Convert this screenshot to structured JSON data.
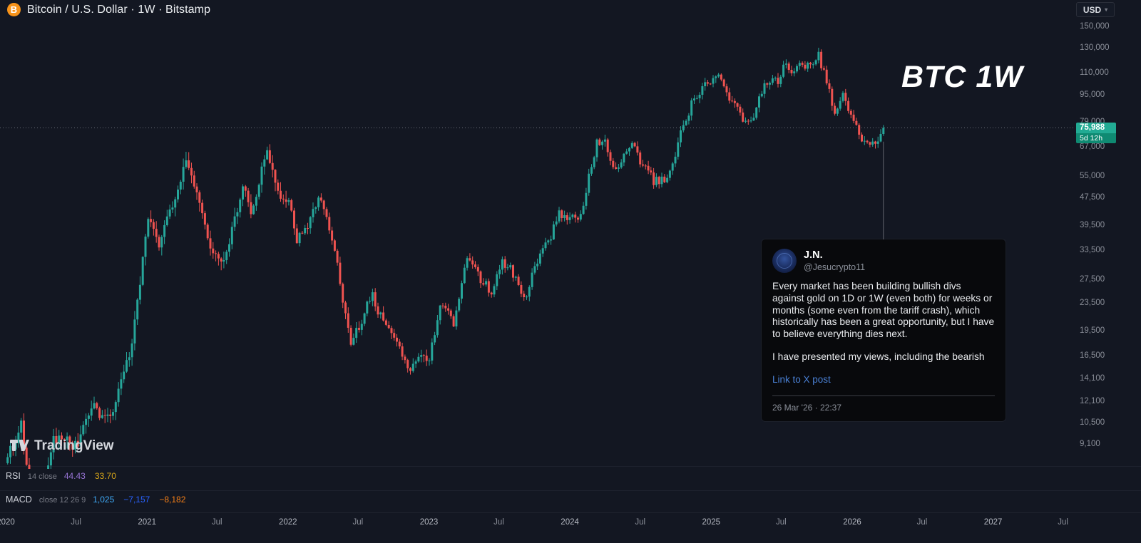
{
  "header": {
    "symbol_title": "Bitcoin / U.S. Dollar · 1W · Bitstamp",
    "currency_button": "USD"
  },
  "watermark": "BTC 1W",
  "logo_text": "TradingView",
  "colors": {
    "background": "#131722",
    "up": "#26a69a",
    "down": "#ef5350",
    "accent_price_bg": "#22ab94",
    "accent_countdown_bg": "#0f8a72",
    "axis_text": "#8b8f99",
    "axis_text_major": "#b6bac3",
    "price_line": "#787b86",
    "connector_line": "#9598a1",
    "link_blue": "#4a80d4"
  },
  "price_scale": {
    "last_price": "75,988",
    "countdown": "5d 12h"
  },
  "indicators": {
    "rsi": {
      "name": "RSI",
      "params": "14 close",
      "values": [
        {
          "text": "44.43",
          "color": "#9673d3"
        },
        {
          "text": "33.70",
          "color": "#d6a51a"
        }
      ]
    },
    "macd": {
      "name": "MACD",
      "params": "close 12 26 9",
      "values": [
        {
          "text": "1,025",
          "color": "#3fa9f5"
        },
        {
          "text": "−7,157",
          "color": "#2962ff"
        },
        {
          "text": "−8,182",
          "color": "#f57f17"
        }
      ]
    }
  },
  "tweet": {
    "name": "J.N.",
    "handle": "@Jesucrypto11",
    "paragraph1": "Every market has been building bullish divs against gold on 1D or 1W (even both) for weeks or months (some even from the tariff crash), which historically has been a great opportunity, but I have to believe everything dies next.",
    "paragraph2": "I have presented my views, including the bearish",
    "link_text": "Link to X post",
    "timestamp": "26 Mar '26 · 22:37"
  },
  "chart_data": {
    "type": "candlestick",
    "title": "Bitcoin / U.S. Dollar · 1W · Bitstamp",
    "symbol": "BTCUSD",
    "exchange": "Bitstamp",
    "interval": "1W",
    "price_scale_type": "log",
    "last_close": 75988,
    "countdown_to_bar_close": "5d 12h",
    "ylim": [
      7800,
      160000
    ],
    "y_ticks": [
      150000,
      130000,
      110000,
      95000,
      79000,
      67000,
      55000,
      47500,
      39500,
      33500,
      27500,
      23500,
      19500,
      16500,
      14100,
      12100,
      10500,
      9100
    ],
    "x_ticks": [
      {
        "date": "2020-01-01",
        "label": "2020",
        "major": true
      },
      {
        "date": "2020-07-01",
        "label": "Jul",
        "major": false
      },
      {
        "date": "2021-01-01",
        "label": "2021",
        "major": true
      },
      {
        "date": "2021-07-01",
        "label": "Jul",
        "major": false
      },
      {
        "date": "2022-01-01",
        "label": "2022",
        "major": true
      },
      {
        "date": "2022-07-01",
        "label": "Jul",
        "major": false
      },
      {
        "date": "2023-01-01",
        "label": "2023",
        "major": true
      },
      {
        "date": "2023-07-01",
        "label": "Jul",
        "major": false
      },
      {
        "date": "2024-01-01",
        "label": "2024",
        "major": true
      },
      {
        "date": "2024-07-01",
        "label": "Jul",
        "major": false
      },
      {
        "date": "2025-01-01",
        "label": "2025",
        "major": true
      },
      {
        "date": "2025-07-01",
        "label": "Jul",
        "major": false
      },
      {
        "date": "2026-01-01",
        "label": "2026",
        "major": true
      },
      {
        "date": "2026-07-01",
        "label": "Jul",
        "major": false
      },
      {
        "date": "2027-01-01",
        "label": "2027",
        "major": true
      },
      {
        "date": "2027-07-01",
        "label": "Jul",
        "major": false
      }
    ],
    "series_start": "2020-01-06",
    "anchors": [
      [
        "2020-01-06",
        8000
      ],
      [
        "2020-02-10",
        10200
      ],
      [
        "2020-03-16",
        5300
      ],
      [
        "2020-05-04",
        9500
      ],
      [
        "2020-07-06",
        9150
      ],
      [
        "2020-08-17",
        11900
      ],
      [
        "2020-09-21",
        10500
      ],
      [
        "2020-11-16",
        16500
      ],
      [
        "2021-01-04",
        40800
      ],
      [
        "2021-02-01",
        33500
      ],
      [
        "2021-04-12",
        63500
      ],
      [
        "2021-05-10",
        49000
      ],
      [
        "2021-06-21",
        31500
      ],
      [
        "2021-07-19",
        29800
      ],
      [
        "2021-09-06",
        51000
      ],
      [
        "2021-09-27",
        41500
      ],
      [
        "2021-11-08",
        67500
      ],
      [
        "2021-12-06",
        48000
      ],
      [
        "2022-01-03",
        46500
      ],
      [
        "2022-01-24",
        35500
      ],
      [
        "2022-03-28",
        46800
      ],
      [
        "2022-05-09",
        29000
      ],
      [
        "2022-06-13",
        18000
      ],
      [
        "2022-08-08",
        24300
      ],
      [
        "2022-09-19",
        18900
      ],
      [
        "2022-11-07",
        15800
      ],
      [
        "2023-01-02",
        16600
      ],
      [
        "2023-01-30",
        23500
      ],
      [
        "2023-03-06",
        20500
      ],
      [
        "2023-04-10",
        30200
      ],
      [
        "2023-06-12",
        25000
      ],
      [
        "2023-07-10",
        30500
      ],
      [
        "2023-09-11",
        25200
      ],
      [
        "2023-10-23",
        34000
      ],
      [
        "2023-12-04",
        42000
      ],
      [
        "2024-01-22",
        39500
      ],
      [
        "2024-03-11",
        72000
      ],
      [
        "2024-05-06",
        60000
      ],
      [
        "2024-06-03",
        69500
      ],
      [
        "2024-08-05",
        52000
      ],
      [
        "2024-09-09",
        55000
      ],
      [
        "2024-11-11",
        88000
      ],
      [
        "2024-12-16",
        106000
      ],
      [
        "2025-01-20",
        104000
      ],
      [
        "2025-02-24",
        86000
      ],
      [
        "2025-04-07",
        76500
      ],
      [
        "2025-05-19",
        106000
      ],
      [
        "2025-06-23",
        101000
      ],
      [
        "2025-07-14",
        119000
      ],
      [
        "2025-08-25",
        112000
      ],
      [
        "2025-10-06",
        124500
      ],
      [
        "2025-11-17",
        84000
      ],
      [
        "2025-12-08",
        93500
      ],
      [
        "2026-01-12",
        81000
      ],
      [
        "2026-02-16",
        65500
      ],
      [
        "2026-03-02",
        64500
      ],
      [
        "2026-03-23",
        75988
      ]
    ]
  }
}
